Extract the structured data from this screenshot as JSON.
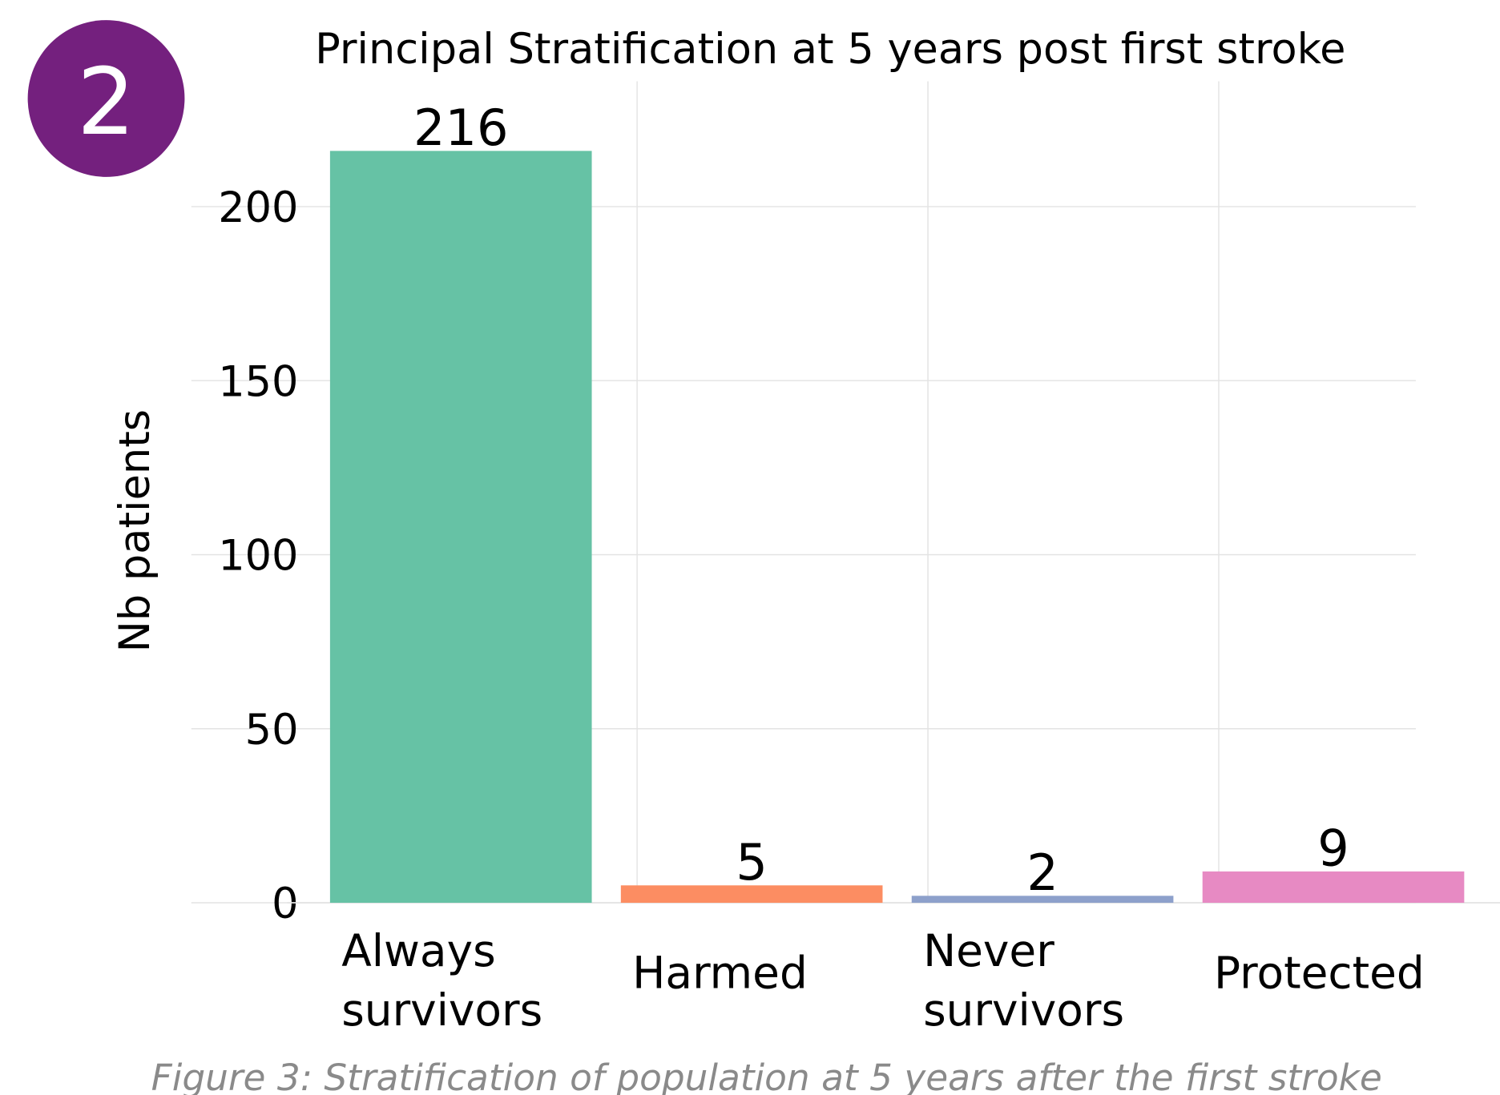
{
  "badge": "2",
  "chart_data": {
    "type": "bar",
    "title": "Principal Stratification at 5 years post first stroke",
    "ylabel": "Nb patients",
    "categories": [
      "Always survivors",
      "Harmed",
      "Never survivors",
      "Protected"
    ],
    "values": [
      216,
      5,
      2,
      9
    ],
    "colors": [
      "#66c2a5",
      "#fc8d62",
      "#8da0cb",
      "#e78ac3"
    ],
    "ylim": [
      0,
      236
    ],
    "yticks": [
      0,
      50,
      100,
      150,
      200
    ],
    "grid": true
  },
  "caption": "Figure 3:  Stratification of population at 5 years after the first stroke"
}
